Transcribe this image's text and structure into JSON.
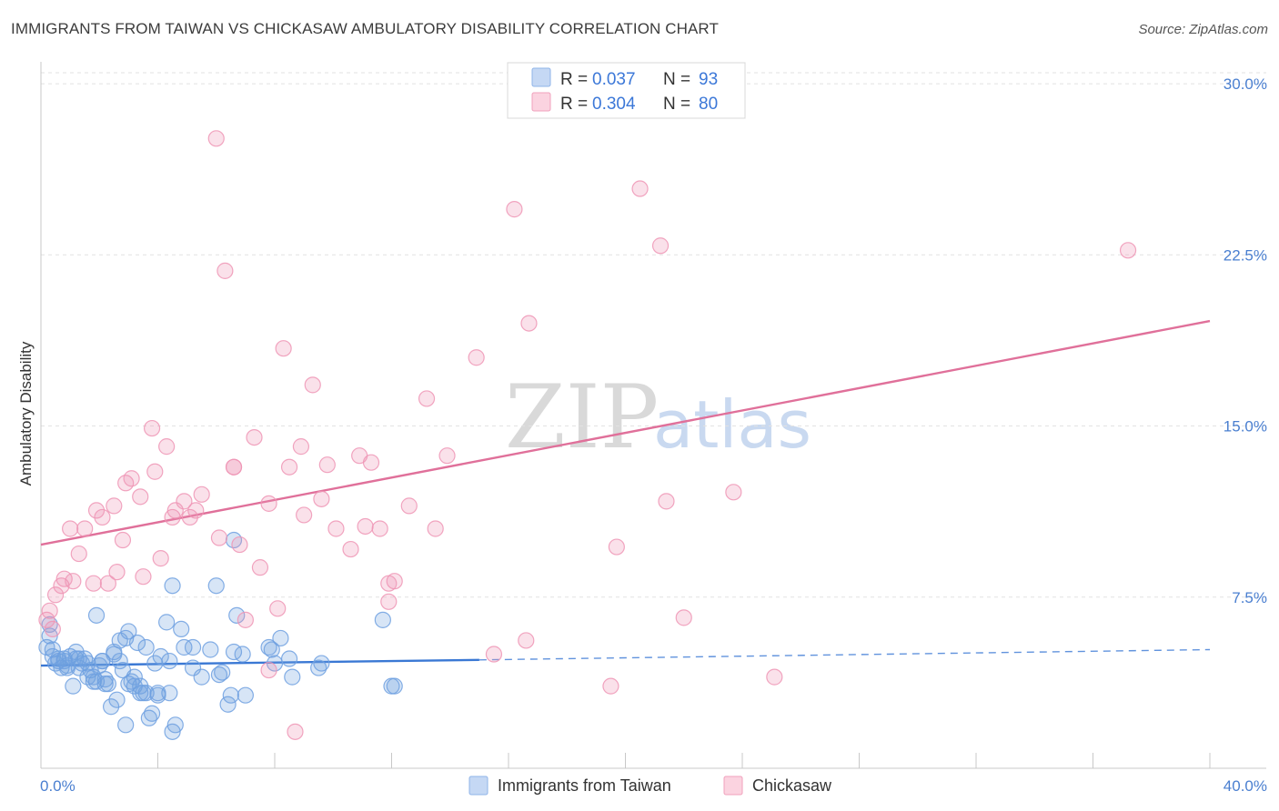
{
  "title": "IMMIGRANTS FROM TAIWAN VS CHICKASAW AMBULATORY DISABILITY CORRELATION CHART",
  "source": "Source: ZipAtlas.com",
  "watermark": {
    "zip": "ZIP",
    "atlas": "atlas"
  },
  "chart_data": {
    "type": "scatter",
    "ylabel": "Ambulatory Disability",
    "xlim": [
      0,
      40
    ],
    "ylim": [
      0,
      30.8
    ],
    "x_tick_labels": [
      {
        "value": 0,
        "label": "0.0%"
      },
      {
        "value": 40,
        "label": "40.0%"
      }
    ],
    "y_tick_labels": [
      {
        "value": 7.5,
        "label": "7.5%"
      },
      {
        "value": 15.0,
        "label": "15.0%"
      },
      {
        "value": 22.5,
        "label": "22.5%"
      },
      {
        "value": 30.0,
        "label": "30.0%"
      }
    ],
    "grid": true,
    "legend_position": "top-center",
    "legend": [
      {
        "r_label": "R =",
        "r_value": "0.037",
        "n_label": "N =",
        "n_value": "93",
        "color": "#8fb4e8"
      },
      {
        "r_label": "R =",
        "r_value": "0.304",
        "n_label": "N =",
        "n_value": "80",
        "color": "#f0a0bc"
      }
    ],
    "series": [
      {
        "name": "Immigrants from Taiwan",
        "color": "#6fa0e0",
        "line_color": "#3a78d4",
        "trend": {
          "x0": 0,
          "y0": 4.5,
          "x1": 15,
          "y1": 4.75,
          "dash_to_x": 40,
          "dash_to_y": 5.2
        },
        "points": [
          [
            0.2,
            5.3
          ],
          [
            0.3,
            5.8
          ],
          [
            0.4,
            4.9
          ],
          [
            0.5,
            4.6
          ],
          [
            0.6,
            4.8
          ],
          [
            0.7,
            4.4
          ],
          [
            0.8,
            4.7
          ],
          [
            0.9,
            4.5
          ],
          [
            1.0,
            4.9
          ],
          [
            1.1,
            3.6
          ],
          [
            1.2,
            5.1
          ],
          [
            1.3,
            4.4
          ],
          [
            1.4,
            4.6
          ],
          [
            1.5,
            4.8
          ],
          [
            1.6,
            4.0
          ],
          [
            1.7,
            4.3
          ],
          [
            1.8,
            3.8
          ],
          [
            1.9,
            6.7
          ],
          [
            2.0,
            4.5
          ],
          [
            2.1,
            4.7
          ],
          [
            2.2,
            3.9
          ],
          [
            2.3,
            3.7
          ],
          [
            2.4,
            2.7
          ],
          [
            2.5,
            5.0
          ],
          [
            2.6,
            3.0
          ],
          [
            2.7,
            5.6
          ],
          [
            2.8,
            4.3
          ],
          [
            2.9,
            1.9
          ],
          [
            3.0,
            6.0
          ],
          [
            3.1,
            3.8
          ],
          [
            3.2,
            4.0
          ],
          [
            3.3,
            5.5
          ],
          [
            3.4,
            3.6
          ],
          [
            3.5,
            3.3
          ],
          [
            3.6,
            5.3
          ],
          [
            3.7,
            2.2
          ],
          [
            3.8,
            2.4
          ],
          [
            3.9,
            4.6
          ],
          [
            4.0,
            3.2
          ],
          [
            4.1,
            4.9
          ],
          [
            4.3,
            6.4
          ],
          [
            4.4,
            3.3
          ],
          [
            4.5,
            1.6
          ],
          [
            4.6,
            1.9
          ],
          [
            4.8,
            6.1
          ],
          [
            4.9,
            5.3
          ],
          [
            5.2,
            4.4
          ],
          [
            5.5,
            4.0
          ],
          [
            5.8,
            5.2
          ],
          [
            6.0,
            8.0
          ],
          [
            6.2,
            4.2
          ],
          [
            6.4,
            2.8
          ],
          [
            6.5,
            3.2
          ],
          [
            6.6,
            5.1
          ],
          [
            6.7,
            6.7
          ],
          [
            6.9,
            5.0
          ],
          [
            7.0,
            3.2
          ],
          [
            7.9,
            5.2
          ],
          [
            8.0,
            4.6
          ],
          [
            8.2,
            5.7
          ],
          [
            8.5,
            4.8
          ],
          [
            8.6,
            4.0
          ],
          [
            9.5,
            4.4
          ],
          [
            9.6,
            4.6
          ],
          [
            11.7,
            6.5
          ],
          [
            12.0,
            3.6
          ],
          [
            12.1,
            3.6
          ],
          [
            0.3,
            6.3
          ],
          [
            0.4,
            5.2
          ],
          [
            0.6,
            4.7
          ],
          [
            0.9,
            4.4
          ],
          [
            1.2,
            4.8
          ],
          [
            1.6,
            4.6
          ],
          [
            1.9,
            3.8
          ],
          [
            2.2,
            3.7
          ],
          [
            2.5,
            5.1
          ],
          [
            2.9,
            5.7
          ],
          [
            3.2,
            3.6
          ],
          [
            3.6,
            3.3
          ],
          [
            4.0,
            3.3
          ],
          [
            4.4,
            4.7
          ],
          [
            6.6,
            10.0
          ],
          [
            0.8,
            4.8
          ],
          [
            1.3,
            4.8
          ],
          [
            1.8,
            4.0
          ],
          [
            2.1,
            4.7
          ],
          [
            2.7,
            4.7
          ],
          [
            3.0,
            3.7
          ],
          [
            3.4,
            3.3
          ],
          [
            4.5,
            8.0
          ],
          [
            5.2,
            5.3
          ],
          [
            6.1,
            4.1
          ],
          [
            7.8,
            5.3
          ]
        ]
      },
      {
        "name": "Chickasaw",
        "color": "#ee95b5",
        "line_color": "#e0709a",
        "trend": {
          "x0": 0,
          "y0": 9.8,
          "x1": 40,
          "y1": 19.6
        },
        "points": [
          [
            0.2,
            6.5
          ],
          [
            0.3,
            6.9
          ],
          [
            0.4,
            6.1
          ],
          [
            0.5,
            7.6
          ],
          [
            0.7,
            8.0
          ],
          [
            0.8,
            8.3
          ],
          [
            1.0,
            10.5
          ],
          [
            1.1,
            8.2
          ],
          [
            1.3,
            9.4
          ],
          [
            1.5,
            10.5
          ],
          [
            1.8,
            8.1
          ],
          [
            1.9,
            11.3
          ],
          [
            2.1,
            11.0
          ],
          [
            2.3,
            8.1
          ],
          [
            2.5,
            11.5
          ],
          [
            2.6,
            8.6
          ],
          [
            2.8,
            10.0
          ],
          [
            2.9,
            12.5
          ],
          [
            3.1,
            12.7
          ],
          [
            3.4,
            11.9
          ],
          [
            3.5,
            8.4
          ],
          [
            3.8,
            14.9
          ],
          [
            3.9,
            13.0
          ],
          [
            4.1,
            9.2
          ],
          [
            4.3,
            14.1
          ],
          [
            4.5,
            11.0
          ],
          [
            4.6,
            11.3
          ],
          [
            4.9,
            11.7
          ],
          [
            5.3,
            11.3
          ],
          [
            5.5,
            12.0
          ],
          [
            6.0,
            27.6
          ],
          [
            6.1,
            10.1
          ],
          [
            6.3,
            21.8
          ],
          [
            6.6,
            13.2
          ],
          [
            6.8,
            9.8
          ],
          [
            7.0,
            6.5
          ],
          [
            7.3,
            14.5
          ],
          [
            7.5,
            8.8
          ],
          [
            7.8,
            11.6
          ],
          [
            8.1,
            7.0
          ],
          [
            8.3,
            18.4
          ],
          [
            8.5,
            13.2
          ],
          [
            8.7,
            1.6
          ],
          [
            8.9,
            14.1
          ],
          [
            9.0,
            11.1
          ],
          [
            9.3,
            16.8
          ],
          [
            9.6,
            11.8
          ],
          [
            9.8,
            13.3
          ],
          [
            10.1,
            10.5
          ],
          [
            10.6,
            9.6
          ],
          [
            10.9,
            13.7
          ],
          [
            11.1,
            10.6
          ],
          [
            11.3,
            13.4
          ],
          [
            11.6,
            10.5
          ],
          [
            11.9,
            7.3
          ],
          [
            12.1,
            8.2
          ],
          [
            12.6,
            11.5
          ],
          [
            13.2,
            16.2
          ],
          [
            13.5,
            10.5
          ],
          [
            13.9,
            13.7
          ],
          [
            14.9,
            18.0
          ],
          [
            15.5,
            5.0
          ],
          [
            16.2,
            24.5
          ],
          [
            16.6,
            5.6
          ],
          [
            16.7,
            19.5
          ],
          [
            18.1,
            29.5
          ],
          [
            18.5,
            29.8
          ],
          [
            19.5,
            3.6
          ],
          [
            19.7,
            9.7
          ],
          [
            20.5,
            25.4
          ],
          [
            21.2,
            22.9
          ],
          [
            21.4,
            11.7
          ],
          [
            22.0,
            6.6
          ],
          [
            23.7,
            12.1
          ],
          [
            25.1,
            4.0
          ],
          [
            37.2,
            22.7
          ],
          [
            5.1,
            11.0
          ],
          [
            6.6,
            13.2
          ],
          [
            11.9,
            8.1
          ],
          [
            7.8,
            4.3
          ]
        ]
      }
    ]
  }
}
